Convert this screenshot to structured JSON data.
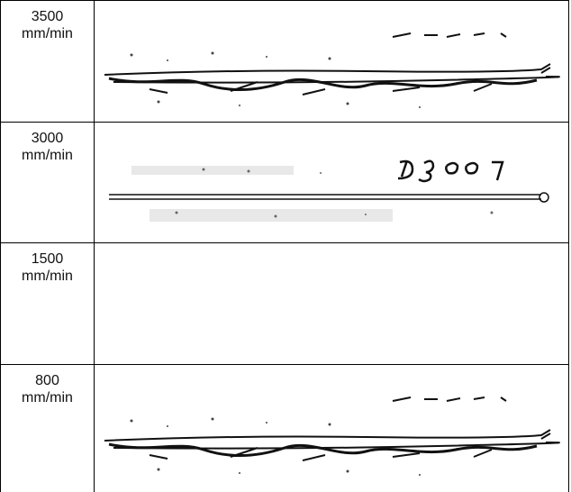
{
  "table": {
    "rows": [
      {
        "speed": "3500",
        "unit": "mm/min"
      },
      {
        "speed": "3000",
        "unit": "mm/min"
      },
      {
        "speed": "1500",
        "unit": "mm/min"
      },
      {
        "speed": "800",
        "unit": "mm/min"
      }
    ]
  }
}
